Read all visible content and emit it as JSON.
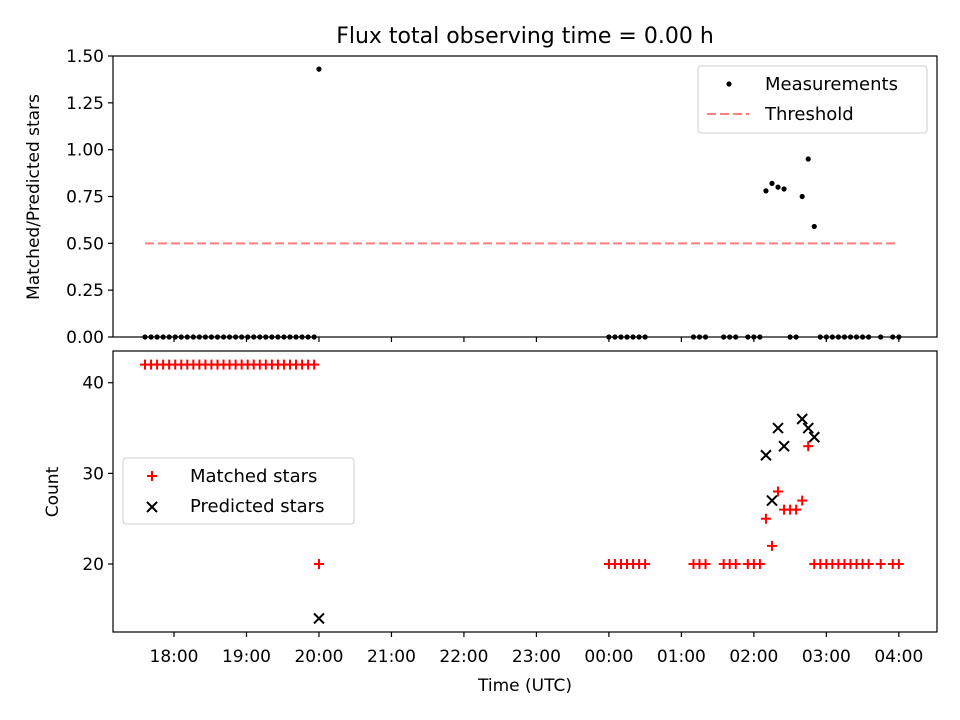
{
  "chart_data": [
    {
      "type": "scatter",
      "title": "Flux total observing time = 0.00 h",
      "xlabel": "",
      "ylabel": "Matched/Predicted stars",
      "ylim": [
        0,
        1.5
      ],
      "yticks": [
        0.0,
        0.25,
        0.5,
        0.75,
        1.0,
        1.25,
        1.5
      ],
      "ytick_labels": [
        "0.00",
        "0.25",
        "0.50",
        "0.75",
        "1.00",
        "1.25",
        "1.50"
      ],
      "legend": {
        "position": "top-right",
        "entries": [
          "Measurements",
          "Threshold"
        ]
      },
      "series": [
        {
          "name": "Measurements",
          "marker": "dot",
          "color": "#000000",
          "x": [
            "17:36",
            "17:41",
            "17:46",
            "17:51",
            "17:56",
            "18:01",
            "18:06",
            "18:11",
            "18:16",
            "18:21",
            "18:26",
            "18:31",
            "18:36",
            "18:41",
            "18:46",
            "18:51",
            "18:56",
            "19:01",
            "19:06",
            "19:11",
            "19:16",
            "19:21",
            "19:26",
            "19:31",
            "19:36",
            "19:41",
            "19:46",
            "19:51",
            "19:56",
            "20:00",
            "00:00",
            "00:05",
            "00:10",
            "00:15",
            "00:20",
            "00:25",
            "00:30",
            "01:10",
            "01:15",
            "01:20",
            "01:35",
            "01:40",
            "01:45",
            "01:55",
            "02:00",
            "02:05",
            "02:10",
            "02:15",
            "02:20",
            "02:25",
            "02:30",
            "02:35",
            "02:40",
            "02:45",
            "02:50",
            "02:55",
            "03:00",
            "03:05",
            "03:10",
            "03:15",
            "03:20",
            "03:25",
            "03:30",
            "03:35",
            "03:45",
            "03:55",
            "04:00"
          ],
          "y": [
            0,
            0,
            0,
            0,
            0,
            0,
            0,
            0,
            0,
            0,
            0,
            0,
            0,
            0,
            0,
            0,
            0,
            0,
            0,
            0,
            0,
            0,
            0,
            0,
            0,
            0,
            0,
            0,
            0,
            1.43,
            0,
            0,
            0,
            0,
            0,
            0,
            0,
            0,
            0,
            0,
            0,
            0,
            0,
            0,
            0,
            0,
            0.78,
            0.82,
            0.8,
            0.79,
            0,
            0,
            0.75,
            0.95,
            0.59,
            0,
            0,
            0,
            0,
            0,
            0,
            0,
            0,
            0,
            0,
            0,
            0
          ]
        },
        {
          "name": "Threshold",
          "style": "dashed",
          "color": "#ff7f7f",
          "x": [
            "17:36",
            "04:00"
          ],
          "y": [
            0.5,
            0.5
          ]
        }
      ]
    },
    {
      "type": "scatter",
      "title": "",
      "xlabel": "Time (UTC)",
      "ylabel": "Count",
      "ylim": [
        12.5,
        43.5
      ],
      "yticks": [
        20,
        30,
        40
      ],
      "ytick_labels": [
        "20",
        "30",
        "40"
      ],
      "xticks": [
        "18:00",
        "19:00",
        "20:00",
        "21:00",
        "22:00",
        "23:00",
        "00:00",
        "01:00",
        "02:00",
        "03:00",
        "04:00"
      ],
      "legend": {
        "position": "center-left",
        "entries": [
          "Matched stars",
          "Predicted stars"
        ]
      },
      "series": [
        {
          "name": "Matched stars",
          "marker": "plus",
          "color": "#ff0000",
          "x": [
            "17:36",
            "17:41",
            "17:46",
            "17:51",
            "17:56",
            "18:01",
            "18:06",
            "18:11",
            "18:16",
            "18:21",
            "18:26",
            "18:31",
            "18:36",
            "18:41",
            "18:46",
            "18:51",
            "18:56",
            "19:01",
            "19:06",
            "19:11",
            "19:16",
            "19:21",
            "19:26",
            "19:31",
            "19:36",
            "19:41",
            "19:46",
            "19:51",
            "19:56",
            "20:00",
            "00:00",
            "00:05",
            "00:10",
            "00:15",
            "00:20",
            "00:25",
            "00:30",
            "01:10",
            "01:15",
            "01:20",
            "01:35",
            "01:40",
            "01:45",
            "01:55",
            "02:00",
            "02:05",
            "02:10",
            "02:15",
            "02:20",
            "02:25",
            "02:30",
            "02:35",
            "02:40",
            "02:45",
            "02:50",
            "02:55",
            "03:00",
            "03:05",
            "03:10",
            "03:15",
            "03:20",
            "03:25",
            "03:30",
            "03:35",
            "03:45",
            "03:55",
            "04:00"
          ],
          "y": [
            42,
            42,
            42,
            42,
            42,
            42,
            42,
            42,
            42,
            42,
            42,
            42,
            42,
            42,
            42,
            42,
            42,
            42,
            42,
            42,
            42,
            42,
            42,
            42,
            42,
            42,
            42,
            42,
            42,
            20,
            20,
            20,
            20,
            20,
            20,
            20,
            20,
            20,
            20,
            20,
            20,
            20,
            20,
            20,
            20,
            20,
            25,
            22,
            28,
            26,
            26,
            26,
            27,
            33,
            20,
            20,
            20,
            20,
            20,
            20,
            20,
            20,
            20,
            20,
            20,
            20,
            20
          ]
        },
        {
          "name": "Predicted stars",
          "marker": "x",
          "color": "#000000",
          "x": [
            "20:00",
            "02:10",
            "02:15",
            "02:20",
            "02:25",
            "02:40",
            "02:45",
            "02:50"
          ],
          "y": [
            14,
            32,
            27,
            35,
            33,
            36,
            35,
            34
          ]
        }
      ]
    }
  ]
}
